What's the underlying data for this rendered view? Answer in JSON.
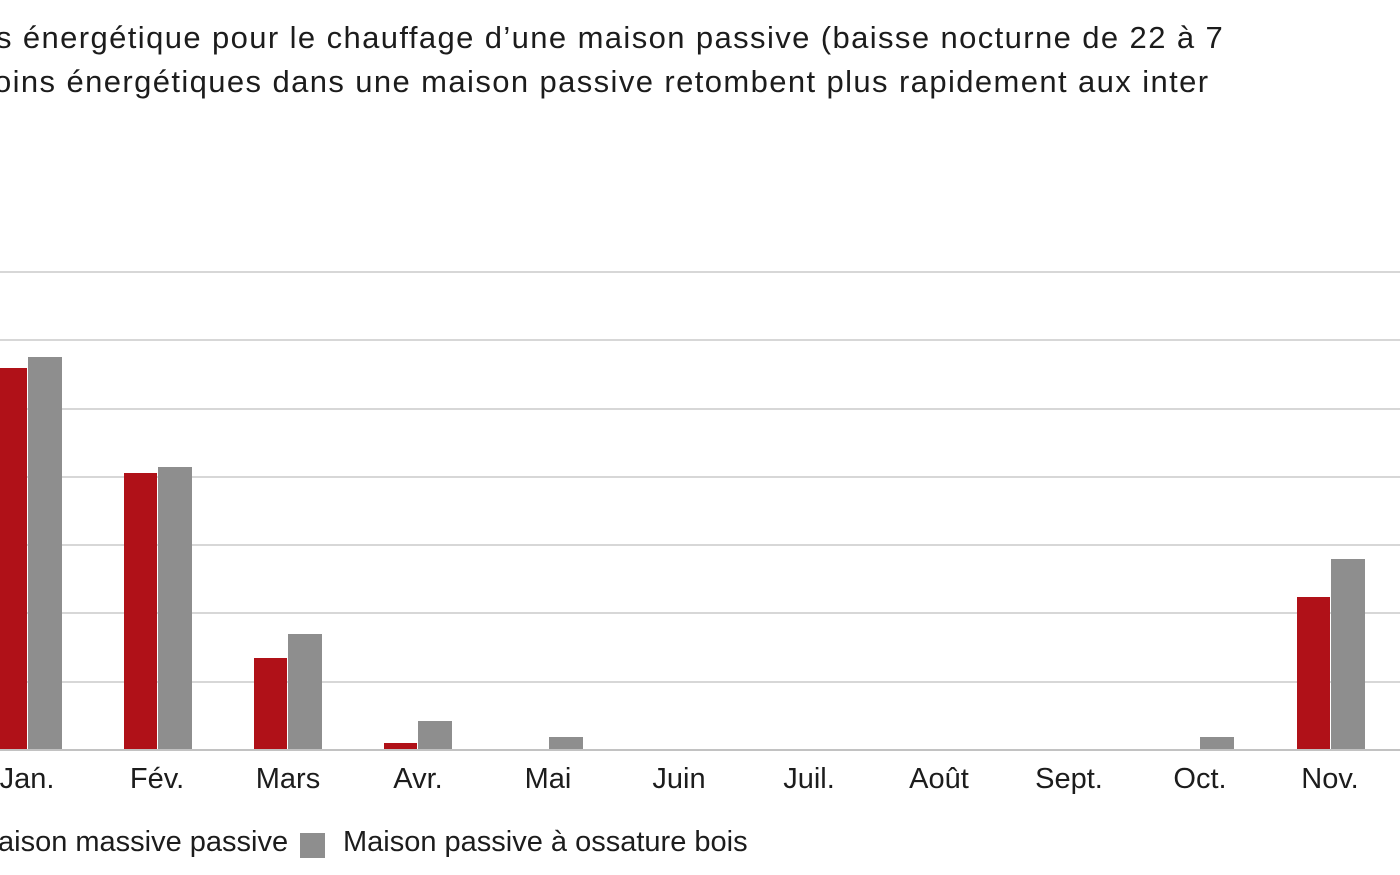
{
  "title": {
    "line1": "s énergétique pour le chauffage d’une maison passive (baisse nocturne de 22 à 7",
    "line2": "oins énergétiques dans une maison passive retombent plus rapidement aux inter"
  },
  "legend": {
    "series1_label": "aison massive passive",
    "series2_label": "Maison passive à ossature bois"
  },
  "colors": {
    "massive_red": "#b01118",
    "ossature_gray": "#8e8e8e",
    "gridline": "#d7d7d7",
    "baseline": "#c2c2c2",
    "text": "#1c1c1c"
  },
  "chart_data": {
    "type": "bar",
    "title": "s énergétique pour le chauffage d’une maison passive (baisse nocturne de 22 à 7 / oins énergétiques dans une maison passive retombent plus rapidement aux inter",
    "xlabel": "",
    "ylabel": "",
    "note": "Y-axis tick labels are cropped out of the frame on the left; values are expressed in visible gridline units (7 equal gridline intervals above the x-axis).",
    "categories": [
      "Jan.",
      "Fév.",
      "Mars",
      "Avr.",
      "Mai",
      "Juin",
      "Juil.",
      "Août",
      "Sept.",
      "Oct.",
      "Nov."
    ],
    "series": [
      {
        "name": "Maison massive passive",
        "color": "#b01118",
        "values": [
          5.6,
          4.05,
          1.35,
          0.1,
          0,
          0,
          0,
          0,
          0,
          0,
          2.24
        ]
      },
      {
        "name": "Maison passive à ossature bois",
        "color": "#8e8e8e",
        "values": [
          5.75,
          4.15,
          1.7,
          0.43,
          0.19,
          0,
          0,
          0,
          0,
          0.19,
          2.8
        ]
      }
    ],
    "ylim": [
      0,
      7
    ],
    "grid": true,
    "legend_position": "bottom"
  }
}
